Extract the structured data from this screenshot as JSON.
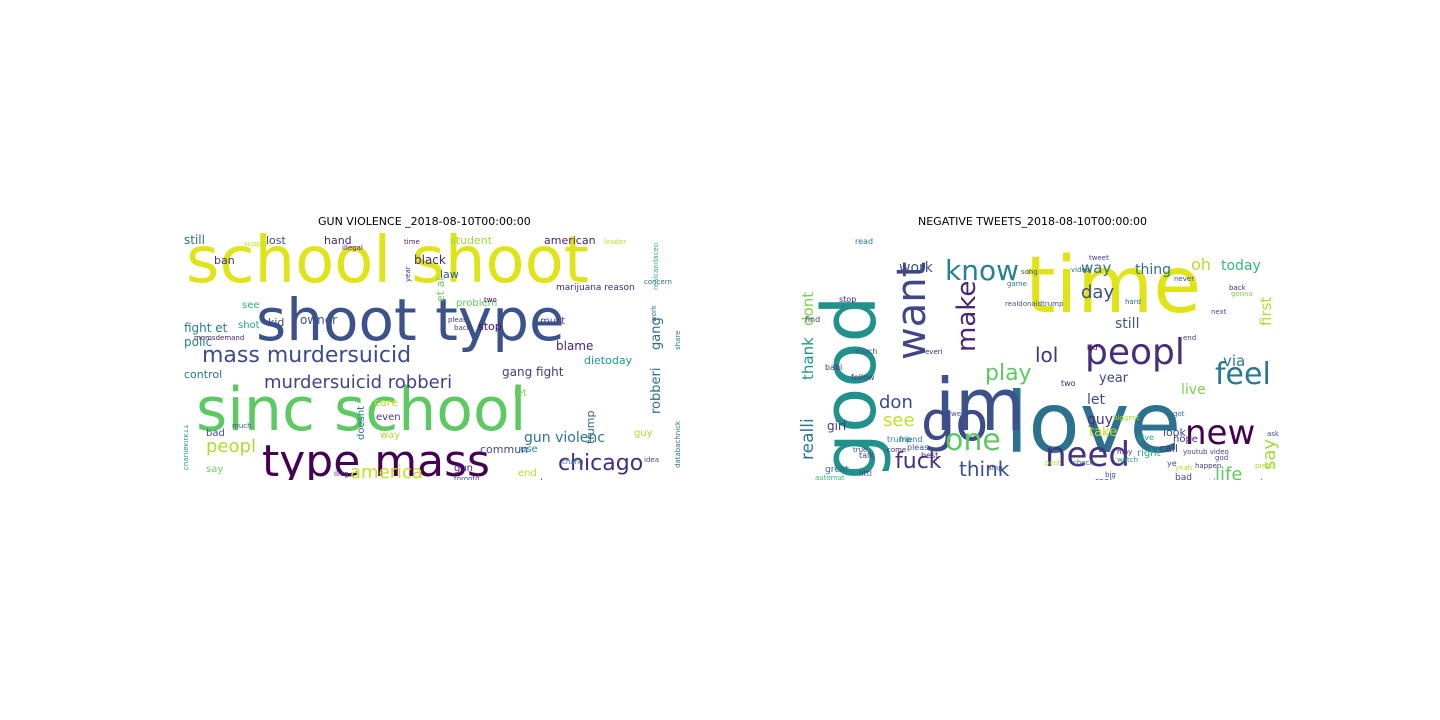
{
  "figure": {
    "panels": [
      {
        "title": "GUN VIOLENCE _2018-08-10T00:00:00",
        "words": [
          {
            "t": "school shoot",
            "s": 64,
            "c": "#dfe318"
          },
          {
            "t": "shoot type",
            "s": 58,
            "c": "#3b528b"
          },
          {
            "t": "sinc school",
            "s": 60,
            "c": "#5ec962"
          },
          {
            "t": "type mass",
            "s": 44,
            "c": "#440154"
          },
          {
            "t": "mass murdersuicid",
            "s": 22,
            "c": "#3e4a89"
          },
          {
            "t": "murdersuicid robberi",
            "s": 18,
            "c": "#414487"
          },
          {
            "t": "chicago",
            "s": 22,
            "c": "#472c7a"
          },
          {
            "t": "america",
            "s": 18,
            "c": "#c2df23"
          },
          {
            "t": "peopl",
            "s": 18,
            "c": "#addc30"
          },
          {
            "t": "gun violenc",
            "s": 14,
            "c": "#2a788e"
          },
          {
            "t": "robberi",
            "s": 13,
            "c": "#2c728e"
          },
          {
            "t": "gang",
            "s": 13,
            "c": "#31688e"
          },
          {
            "t": "black",
            "s": 12,
            "c": "#482878"
          },
          {
            "t": "law",
            "s": 11,
            "c": "#365c8d"
          },
          {
            "t": "et al",
            "s": 11,
            "c": "#6ece58"
          },
          {
            "t": "fight et",
            "s": 12,
            "c": "#287d8e"
          },
          {
            "t": "polic",
            "s": 12,
            "c": "#25858e"
          },
          {
            "t": "owner",
            "s": 12,
            "c": "#3b528b"
          },
          {
            "t": "stop",
            "s": 11,
            "c": "#471164"
          },
          {
            "t": "blame",
            "s": 12,
            "c": "#482173"
          },
          {
            "t": "dietoday",
            "s": 11,
            "c": "#1f988b"
          },
          {
            "t": "gang fight",
            "s": 12,
            "c": "#453781"
          },
          {
            "t": "let",
            "s": 10,
            "c": "#7ad151"
          },
          {
            "t": "trump",
            "s": 11,
            "c": "#33638d"
          },
          {
            "t": "control",
            "s": 11,
            "c": "#2a788e"
          },
          {
            "t": "student",
            "s": 11,
            "c": "#a0da39"
          },
          {
            "t": "american",
            "s": 11,
            "c": "#481d6f"
          },
          {
            "t": "still",
            "s": 12,
            "c": "#2d708e"
          },
          {
            "t": "lost",
            "s": 11,
            "c": "#3e4989"
          },
          {
            "t": "hand",
            "s": 11,
            "c": "#482475"
          },
          {
            "t": "ban",
            "s": 11,
            "c": "#46327e"
          },
          {
            "t": "kid",
            "s": 11,
            "c": "#404588"
          },
          {
            "t": "shot",
            "s": 10,
            "c": "#22a884"
          },
          {
            "t": "see",
            "s": 10,
            "c": "#2db27d"
          },
          {
            "t": "must",
            "s": 10,
            "c": "#3f4788"
          },
          {
            "t": "problem",
            "s": 10,
            "c": "#5ec962"
          },
          {
            "t": "care",
            "s": 11,
            "c": "#bddf26"
          },
          {
            "t": "even",
            "s": 10,
            "c": "#453882"
          },
          {
            "t": "doesnt",
            "s": 10,
            "c": "#2a788e"
          },
          {
            "t": "way",
            "s": 10,
            "c": "#addc30"
          },
          {
            "t": "bad",
            "s": 10,
            "c": "#3b528b"
          },
          {
            "t": "say",
            "s": 10,
            "c": "#6ece58"
          },
          {
            "t": "said",
            "s": 10,
            "c": "#472d7b"
          },
          {
            "t": "use",
            "s": 10,
            "c": "#24868e"
          },
          {
            "t": "gun",
            "s": 10,
            "c": "#482677"
          },
          {
            "t": "commun",
            "s": 11,
            "c": "#3e4c8a"
          },
          {
            "t": "end",
            "s": 10,
            "c": "#b5de2b"
          },
          {
            "t": "need",
            "s": 10,
            "c": "#3d4e8a"
          },
          {
            "t": "guy",
            "s": 10,
            "c": "#aadc32"
          },
          {
            "t": "marijuana reason",
            "s": 9,
            "c": "#482878"
          },
          {
            "t": "momsdemand",
            "s": 7,
            "c": "#482173"
          },
          {
            "t": "much",
            "s": 7,
            "c": "#3b528b"
          },
          {
            "t": "chang",
            "s": 7,
            "c": "#2a788e"
          },
          {
            "t": "illeg",
            "s": 7,
            "c": "#46337f"
          },
          {
            "t": "toronto",
            "s": 7,
            "c": "#414487"
          },
          {
            "t": "fuck",
            "s": 7,
            "c": "#472c7a"
          },
          {
            "t": "continu",
            "s": 7,
            "c": "#2c728e"
          },
          {
            "t": "take",
            "s": 7,
            "c": "#482475"
          },
          {
            "t": "answer",
            "s": 7,
            "c": "#3e4a89"
          },
          {
            "t": "leader",
            "s": 7,
            "c": "#bddf26"
          },
          {
            "t": "concern",
            "s": 7,
            "c": "#31688e"
          },
          {
            "t": "two",
            "s": 7,
            "c": "#440154"
          },
          {
            "t": "idea",
            "s": 7,
            "c": "#3f4788"
          },
          {
            "t": "pleas",
            "s": 7,
            "c": "#453781"
          },
          {
            "t": "back",
            "s": 7,
            "c": "#433e85"
          },
          {
            "t": "share",
            "s": 7,
            "c": "#2a788e"
          },
          {
            "t": "charliekirk11",
            "s": 7,
            "c": "#1f988b"
          },
          {
            "t": "databachnick",
            "s": 7,
            "c": "#2d708e"
          },
          {
            "t": "realcandaceo",
            "s": 7,
            "c": "#35b779"
          },
          {
            "t": "illegal",
            "s": 7,
            "c": "#482878"
          },
          {
            "t": "time",
            "s": 7,
            "c": "#481d6f"
          },
          {
            "t": "year",
            "s": 7,
            "c": "#472d7b"
          },
          {
            "t": "violent",
            "s": 7,
            "c": "#3b528b"
          },
          {
            "t": "work",
            "s": 7,
            "c": "#2c728e"
          },
          {
            "t": "support",
            "s": 7,
            "c": "#c2df23"
          }
        ]
      },
      {
        "title": "NEGATIVE TWEETS_2018-08-10T00:00:00",
        "words": [
          {
            "t": "time",
            "s": 78,
            "c": "#dfe318"
          },
          {
            "t": "love",
            "s": 84,
            "c": "#2c728e"
          },
          {
            "t": "good",
            "s": 74,
            "c": "#21918c"
          },
          {
            "t": "im",
            "s": 72,
            "c": "#3b528b"
          },
          {
            "t": "go",
            "s": 54,
            "c": "#3e4a89"
          },
          {
            "t": "want",
            "s": 40,
            "c": "#3f4788"
          },
          {
            "t": "make",
            "s": 26,
            "c": "#482677"
          },
          {
            "t": "know",
            "s": 28,
            "c": "#26828e"
          },
          {
            "t": "peopl",
            "s": 36,
            "c": "#472d7b"
          },
          {
            "t": "feel",
            "s": 30,
            "c": "#2a788e"
          },
          {
            "t": "new",
            "s": 34,
            "c": "#440154"
          },
          {
            "t": "need",
            "s": 34,
            "c": "#46327e"
          },
          {
            "t": "one",
            "s": 30,
            "c": "#5ec962"
          },
          {
            "t": "fuck",
            "s": 22,
            "c": "#46327e"
          },
          {
            "t": "think",
            "s": 20,
            "c": "#3b528b"
          },
          {
            "t": "play",
            "s": 22,
            "c": "#5ec962"
          },
          {
            "t": "lol",
            "s": 20,
            "c": "#46327e"
          },
          {
            "t": "see",
            "s": 18,
            "c": "#c2df23"
          },
          {
            "t": "don",
            "s": 18,
            "c": "#3e4989"
          },
          {
            "t": "realli",
            "s": 17,
            "c": "#2a788e"
          },
          {
            "t": "thank",
            "s": 15,
            "c": "#20928c"
          },
          {
            "t": "dont",
            "s": 15,
            "c": "#7ad151"
          },
          {
            "t": "work",
            "s": 14,
            "c": "#3b528b"
          },
          {
            "t": "day",
            "s": 18,
            "c": "#3d4e8a"
          },
          {
            "t": "way",
            "s": 15,
            "c": "#2d708e"
          },
          {
            "t": "thing",
            "s": 14,
            "c": "#2c728e"
          },
          {
            "t": "oh",
            "s": 16,
            "c": "#b5de2b"
          },
          {
            "t": "today",
            "s": 14,
            "c": "#35b779"
          },
          {
            "t": "first",
            "s": 15,
            "c": "#addc30"
          },
          {
            "t": "still",
            "s": 14,
            "c": "#38598c"
          },
          {
            "t": "via",
            "s": 15,
            "c": "#2a788e"
          },
          {
            "t": "live",
            "s": 14,
            "c": "#7ad151"
          },
          {
            "t": "year",
            "s": 13,
            "c": "#404588"
          },
          {
            "t": "let",
            "s": 14,
            "c": "#3e4a89"
          },
          {
            "t": "guy",
            "s": 14,
            "c": "#46327e"
          },
          {
            "t": "take",
            "s": 13,
            "c": "#bddf26"
          },
          {
            "t": "say",
            "s": 18,
            "c": "#a0da39"
          },
          {
            "t": "life",
            "s": 18,
            "c": "#5ec962"
          },
          {
            "t": "call",
            "s": 11,
            "c": "#453781"
          },
          {
            "t": "look",
            "s": 11,
            "c": "#3e4c8a"
          },
          {
            "t": "right",
            "s": 10,
            "c": "#22a884"
          },
          {
            "t": "girl",
            "s": 12,
            "c": "#46327e"
          },
          {
            "t": "hope",
            "s": 10,
            "c": "#472c7a"
          },
          {
            "t": "great",
            "s": 9,
            "c": "#31688e"
          },
          {
            "t": "hate",
            "s": 10,
            "c": "#482475"
          },
          {
            "t": "real",
            "s": 9,
            "c": "#404588"
          },
          {
            "t": "bad",
            "s": 9,
            "c": "#3f4788"
          },
          {
            "t": "give",
            "s": 8,
            "c": "#23a983"
          },
          {
            "t": "best",
            "s": 8,
            "c": "#482878"
          },
          {
            "t": "friend",
            "s": 8,
            "c": "#2a788e"
          },
          {
            "t": "pleas",
            "s": 8,
            "c": "#3b528b"
          },
          {
            "t": "talk",
            "s": 8,
            "c": "#414487"
          },
          {
            "t": "trump",
            "s": 8,
            "c": "#25858e"
          },
          {
            "t": "follow",
            "s": 8,
            "c": "#433e85"
          },
          {
            "t": "littl",
            "s": 8,
            "c": "#3e4a89"
          },
          {
            "t": "babi",
            "s": 8,
            "c": "#46337f"
          },
          {
            "t": "much",
            "s": 8,
            "c": "#3b528b"
          },
          {
            "t": "stop",
            "s": 8,
            "c": "#481d6f"
          },
          {
            "t": "find",
            "s": 8,
            "c": "#433e85"
          },
          {
            "t": "read",
            "s": 8,
            "c": "#2a788e"
          },
          {
            "t": "two",
            "s": 8,
            "c": "#482475"
          },
          {
            "t": "tweet",
            "s": 7,
            "c": "#453882"
          },
          {
            "t": "pretti",
            "s": 7,
            "c": "#addc30"
          },
          {
            "t": "ask",
            "s": 7,
            "c": "#3e4c8a"
          },
          {
            "t": "show",
            "s": 7,
            "c": "#482173"
          },
          {
            "t": "watch",
            "s": 7,
            "c": "#1f988b"
          },
          {
            "t": "happen",
            "s": 7,
            "c": "#453781"
          },
          {
            "t": "check",
            "s": 7,
            "c": "#2c728e"
          },
          {
            "t": "automat",
            "s": 7,
            "c": "#35b779"
          },
          {
            "t": "long",
            "s": 7,
            "c": "#2d708e"
          },
          {
            "t": "yeah",
            "s": 7,
            "c": "#bddf26"
          },
          {
            "t": "post",
            "s": 7,
            "c": "#b5de2b"
          },
          {
            "t": "big",
            "s": 7,
            "c": "#3f4788"
          },
          {
            "t": "true",
            "s": 7,
            "c": "#3e4989"
          },
          {
            "t": "game",
            "s": 7,
            "c": "#2a788e"
          },
          {
            "t": "song",
            "s": 7,
            "c": "#3b528b"
          },
          {
            "t": "video",
            "s": 7,
            "c": "#31688e"
          },
          {
            "t": "come",
            "s": 7,
            "c": "#472d7b"
          },
          {
            "t": "kid",
            "s": 7,
            "c": "#440154"
          },
          {
            "t": "back",
            "s": 7,
            "c": "#482878"
          },
          {
            "t": "god",
            "s": 7,
            "c": "#3e4a89"
          },
          {
            "t": "said",
            "s": 7,
            "c": "#2c728e"
          },
          {
            "t": "realdonaldtrump",
            "s": 7,
            "c": "#3b528b"
          },
          {
            "t": "youtub video",
            "s": 7,
            "c": "#414487"
          },
          {
            "t": "everi",
            "s": 7,
            "c": "#482475"
          },
          {
            "t": "next",
            "s": 7,
            "c": "#3e4c8a"
          },
          {
            "t": "gonna",
            "s": 7,
            "c": "#7ad151"
          },
          {
            "t": "night",
            "s": 7,
            "c": "#472c7a"
          },
          {
            "t": "amp",
            "s": 7,
            "c": "#3e4989"
          },
          {
            "t": "well",
            "s": 7,
            "c": "#3d4e8a"
          },
          {
            "t": "hard",
            "s": 7,
            "c": "#31688e"
          },
          {
            "t": "ye",
            "s": 8,
            "c": "#3b528b"
          },
          {
            "t": "got",
            "s": 7,
            "c": "#2d708e"
          },
          {
            "t": "may",
            "s": 7,
            "c": "#472d7b"
          },
          {
            "t": "wait",
            "s": 7,
            "c": "#482878"
          },
          {
            "t": "end",
            "s": 7,
            "c": "#453781"
          },
          {
            "t": "biggest",
            "s": 7,
            "c": "#addc30"
          },
          {
            "t": "never",
            "s": 7,
            "c": "#3e4a89"
          }
        ]
      }
    ]
  }
}
